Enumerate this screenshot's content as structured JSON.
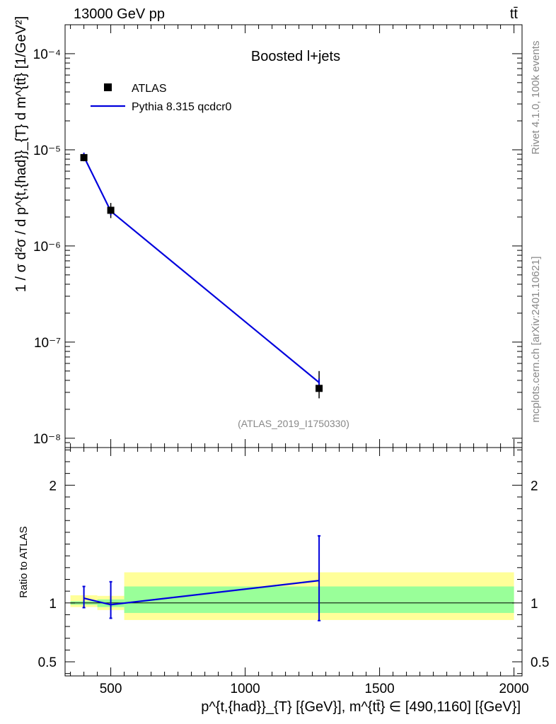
{
  "header": {
    "left": "13000 GeV pp",
    "right": "tt̄"
  },
  "side_labels": {
    "rivet": "Rivet 4.1.0,  100k events",
    "site": "mcplots.cern.ch [arXiv:2401.10621]"
  },
  "chart_data": [
    {
      "type": "line",
      "title": "Boosted l+jets",
      "watermark": "(ATLAS_2019_I1750330)",
      "yscale": "log",
      "ylabel": "1 / σ d²σ / d p^{t,{had}}_{T} d m^{tt̄} [1/GeV²]",
      "xlim": [
        330,
        2030
      ],
      "ylim": [
        8e-09,
        0.0002
      ],
      "y_ticks": [
        {
          "value": 1e-08,
          "label": "10⁻⁸"
        },
        {
          "value": 1e-07,
          "label": "10⁻⁷"
        },
        {
          "value": 1e-06,
          "label": "10⁻⁶"
        },
        {
          "value": 1e-05,
          "label": "10⁻⁵"
        },
        {
          "value": 0.0001,
          "label": "10⁻⁴"
        }
      ],
      "legend": {
        "placement": "top-left",
        "entries": [
          {
            "name": "ATLAS",
            "marker": "square",
            "color": "#000000"
          },
          {
            "name": "Pythia 8.315 qcdcr0",
            "marker": "line",
            "color": "#0000dd"
          }
        ]
      },
      "series": [
        {
          "name": "ATLAS",
          "points": [
            {
              "x": 400,
              "xlo": 350,
              "xhi": 450,
              "y": 8.3e-06,
              "ylo": 7.6e-06,
              "yhi": 9e-06
            },
            {
              "x": 500,
              "xlo": 450,
              "xhi": 550,
              "y": 2.35e-06,
              "ylo": 1.95e-06,
              "yhi": 2.8e-06
            },
            {
              "x": 1275,
              "xlo": 550,
              "xhi": 2000,
              "y": 3.3e-08,
              "ylo": 2.6e-08,
              "yhi": 5e-08
            }
          ]
        },
        {
          "name": "Pythia 8.315 qcdcr0",
          "points": [
            {
              "x": 400,
              "y": 8.5e-06
            },
            {
              "x": 500,
              "y": 2.3e-06
            },
            {
              "x": 1275,
              "y": 3.8e-08
            }
          ]
        }
      ]
    },
    {
      "type": "line",
      "ylabel": "Ratio to ATLAS",
      "xlabel": "p^{t,{had}}_{T} [{GeV}], m^{tt̄} ∈ [490,1160] [{GeV}]",
      "xlim": [
        330,
        2030
      ],
      "ylim": [
        0.38,
        2.32
      ],
      "x_ticks": [
        {
          "value": 500,
          "label": "500"
        },
        {
          "value": 1000,
          "label": "1000"
        },
        {
          "value": 1500,
          "label": "1500"
        },
        {
          "value": 2000,
          "label": "2000"
        }
      ],
      "y_ticks": [
        {
          "value": 0.5,
          "label": "0.5"
        },
        {
          "value": 1,
          "label": "1"
        },
        {
          "value": 2,
          "label": "2"
        }
      ],
      "bands": [
        {
          "xlo": 350,
          "xhi": 450,
          "inner": [
            0.985,
            1.015
          ],
          "outer": [
            0.965,
            1.065
          ]
        },
        {
          "xlo": 450,
          "xhi": 550,
          "inner": [
            0.965,
            1.03
          ],
          "outer": [
            0.94,
            1.06
          ]
        },
        {
          "xlo": 550,
          "xhi": 2000,
          "inner": [
            0.915,
            1.14
          ],
          "outer": [
            0.855,
            1.26
          ]
        }
      ],
      "band_colors": {
        "inner": "#99ff99",
        "outer": "#ffff99"
      },
      "series": [
        {
          "name": "Pythia 8.315 qcdcr0 / ATLAS",
          "points": [
            {
              "x": 400,
              "y": 1.04,
              "ylo": 0.96,
              "yhi": 1.14
            },
            {
              "x": 500,
              "y": 0.985,
              "ylo": 0.87,
              "yhi": 1.18
            },
            {
              "x": 1275,
              "y": 1.19,
              "ylo": 0.85,
              "yhi": 1.57
            }
          ]
        }
      ]
    }
  ]
}
